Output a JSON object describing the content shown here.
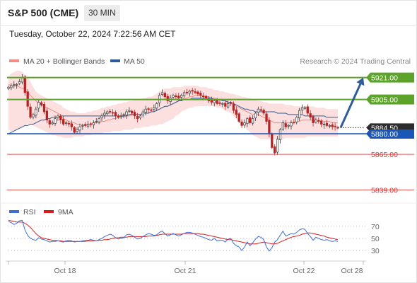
{
  "header": {
    "title": "S&P 500 (CME)",
    "timeframe": "30 MIN",
    "timestamp": "Tuesday, October 22, 2024 7:22:56 AM CET"
  },
  "legend": {
    "ma20": "MA 20 + Bollinger Bands",
    "ma50": "MA 50",
    "source": "Research © 2024 Trading Central",
    "colors": {
      "ma20": "#f08a84",
      "ma50": "#2f5c97"
    }
  },
  "rsi_legend": {
    "rsi": "RSI",
    "ma9": "9MA",
    "colors": {
      "rsi": "#3d6fd6",
      "ma9": "#dd1a1a"
    }
  },
  "x_axis_labels": [
    "Oct 18",
    "Oct 21",
    "Oct 22",
    "Oct 28"
  ],
  "chart_data": [
    {
      "type": "candlestick",
      "ylim": [
        5830,
        5928
      ],
      "current_price": 5884.5,
      "levels": [
        {
          "value": 5921.0,
          "label": "5921.00",
          "style": "resistance",
          "color": "#5da32b"
        },
        {
          "value": 5905.0,
          "label": "5905.00",
          "style": "resistance",
          "color": "#5da32b"
        },
        {
          "value": 5880.0,
          "label": "5880.00",
          "style": "pivot",
          "color": "#1a56b8"
        },
        {
          "value": 5865.0,
          "label": "5865.00",
          "style": "support",
          "color": "#e05858"
        },
        {
          "value": 5839.0,
          "label": "5839.00",
          "style": "support",
          "color": "#e05858"
        }
      ],
      "current_label": "5884.50",
      "target_arrow": {
        "from": 5884.5,
        "to": 5921
      },
      "close": [
        5914,
        5915,
        5916,
        5916,
        5918,
        5921,
        5910,
        5900,
        5892,
        5894,
        5898,
        5903,
        5901,
        5896,
        5890,
        5887,
        5888,
        5891,
        5893,
        5890,
        5887,
        5888,
        5887,
        5885,
        5881,
        5883,
        5885,
        5886,
        5886,
        5887,
        5887,
        5888,
        5889,
        5891,
        5893,
        5895,
        5896,
        5896,
        5895,
        5893,
        5892,
        5893,
        5894,
        5896,
        5897,
        5895,
        5893,
        5891,
        5893,
        5896,
        5898,
        5898,
        5897,
        5899,
        5902,
        5908,
        5910,
        5907,
        5904,
        5906,
        5908,
        5907,
        5906,
        5908,
        5910,
        5910,
        5911,
        5911,
        5910,
        5909,
        5908,
        5907,
        5906,
        5904,
        5903,
        5904,
        5902,
        5902,
        5902,
        5900,
        5902,
        5902,
        5897,
        5894,
        5889,
        5886,
        5888,
        5891,
        5888,
        5891,
        5895,
        5898,
        5897,
        5895,
        5889,
        5880,
        5870,
        5866,
        5876,
        5883,
        5888,
        5885,
        5886,
        5888,
        5888,
        5892,
        5897,
        5899,
        5899,
        5895,
        5892,
        5888,
        5890,
        5889,
        5887,
        5887,
        5886,
        5886,
        5885,
        5885,
        5884.5
      ],
      "ma20": [
        5916,
        5915,
        5915,
        5915,
        5914,
        5913,
        5912,
        5910,
        5908,
        5906,
        5904,
        5902,
        5901,
        5900,
        5899,
        5898,
        5897,
        5896,
        5895,
        5893,
        5891,
        5890,
        5889,
        5888,
        5888,
        5887,
        5887,
        5887,
        5887,
        5887,
        5887,
        5888,
        5888,
        5888,
        5889,
        5889,
        5890,
        5890,
        5891,
        5891,
        5892,
        5892,
        5893,
        5893,
        5893,
        5894,
        5894,
        5894,
        5894,
        5895,
        5895,
        5895,
        5896,
        5896,
        5897,
        5898,
        5899,
        5900,
        5900,
        5901,
        5902,
        5903,
        5904,
        5905,
        5906,
        5906,
        5907,
        5907,
        5908,
        5908,
        5908,
        5907,
        5907,
        5907,
        5906,
        5906,
        5905,
        5905,
        5904,
        5904,
        5903,
        5903,
        5902,
        5900,
        5899,
        5898,
        5897,
        5896,
        5895,
        5894,
        5894,
        5894,
        5893,
        5892,
        5891,
        5890,
        5889,
        5888,
        5888,
        5888,
        5888,
        5888,
        5888,
        5888,
        5888,
        5889,
        5889,
        5890,
        5890,
        5890,
        5890,
        5890,
        5890,
        5890,
        5890,
        5889,
        5889,
        5889,
        5888,
        5888,
        5888
      ],
      "ma50": [
        5880,
        5881,
        5882,
        5883,
        5884,
        5885,
        5886,
        5886,
        5887,
        5887,
        5888,
        5889,
        5890,
        5890,
        5891,
        5891,
        5892,
        5892,
        5892,
        5893,
        5893,
        5893,
        5893,
        5893,
        5893,
        5893,
        5893,
        5893,
        5893,
        5893,
        5893,
        5893,
        5893,
        5893,
        5893,
        5893,
        5893,
        5893,
        5893,
        5893,
        5893,
        5893,
        5893,
        5893,
        5894,
        5894,
        5894,
        5894,
        5894,
        5895,
        5895,
        5895,
        5896,
        5896,
        5897,
        5898,
        5899,
        5900,
        5900,
        5901,
        5902,
        5903,
        5904,
        5904,
        5905,
        5905,
        5905,
        5906,
        5906,
        5906,
        5906,
        5906,
        5906,
        5906,
        5906,
        5905,
        5905,
        5905,
        5904,
        5904,
        5903,
        5903,
        5902,
        5901,
        5900,
        5899,
        5898,
        5898,
        5897,
        5897,
        5896,
        5896,
        5896,
        5896,
        5896,
        5896,
        5896,
        5896,
        5895,
        5895,
        5895,
        5895,
        5894,
        5894,
        5894,
        5894,
        5894,
        5894,
        5893,
        5893,
        5893,
        5893,
        5893,
        5893,
        5893,
        5893,
        5892,
        5892,
        5892,
        5892,
        5892
      ],
      "bollinger_upper": [
        5922,
        5924,
        5925,
        5926,
        5926,
        5925,
        5923,
        5921,
        5918,
        5914,
        5911,
        5909,
        5908,
        5907,
        5906,
        5905,
        5904,
        5903,
        5902,
        5901,
        5899,
        5898,
        5897,
        5896,
        5896,
        5895,
        5895,
        5895,
        5895,
        5896,
        5896,
        5897,
        5897,
        5898,
        5899,
        5899,
        5900,
        5900,
        5901,
        5901,
        5902,
        5902,
        5903,
        5903,
        5904,
        5904,
        5905,
        5905,
        5905,
        5906,
        5906,
        5907,
        5907,
        5908,
        5909,
        5911,
        5912,
        5913,
        5913,
        5913,
        5914,
        5914,
        5914,
        5914,
        5915,
        5915,
        5915,
        5915,
        5915,
        5915,
        5914,
        5914,
        5914,
        5913,
        5913,
        5912,
        5912,
        5911,
        5911,
        5910,
        5910,
        5909,
        5909,
        5908,
        5908,
        5907,
        5907,
        5906,
        5906,
        5905,
        5905,
        5904,
        5904,
        5903,
        5903,
        5902,
        5902,
        5902,
        5902,
        5902,
        5902,
        5901,
        5901,
        5901,
        5900,
        5900,
        5900,
        5900,
        5900,
        5900,
        5900,
        5900,
        5899,
        5899,
        5899,
        5899,
        5898,
        5898,
        5898,
        5898,
        5898
      ],
      "bollinger_lower": [
        5883,
        5882,
        5882,
        5883,
        5884,
        5885,
        5886,
        5887,
        5887,
        5886,
        5885,
        5884,
        5883,
        5882,
        5881,
        5880,
        5879,
        5879,
        5878,
        5878,
        5877,
        5877,
        5877,
        5877,
        5878,
        5878,
        5878,
        5878,
        5879,
        5879,
        5879,
        5880,
        5880,
        5880,
        5880,
        5881,
        5881,
        5881,
        5882,
        5882,
        5882,
        5882,
        5883,
        5883,
        5883,
        5883,
        5884,
        5884,
        5884,
        5885,
        5885,
        5885,
        5886,
        5886,
        5886,
        5887,
        5887,
        5888,
        5889,
        5890,
        5891,
        5893,
        5894,
        5896,
        5897,
        5898,
        5899,
        5899,
        5900,
        5900,
        5900,
        5900,
        5900,
        5900,
        5900,
        5900,
        5899,
        5899,
        5898,
        5897,
        5896,
        5895,
        5893,
        5891,
        5889,
        5887,
        5885,
        5883,
        5881,
        5879,
        5878,
        5877,
        5876,
        5876,
        5876,
        5876,
        5876,
        5876,
        5876,
        5876,
        5876,
        5877,
        5877,
        5877,
        5877,
        5877,
        5877,
        5877,
        5877,
        5878,
        5878,
        5878,
        5878,
        5878,
        5878,
        5878,
        5878,
        5878,
        5878,
        5878,
        5878
      ]
    },
    {
      "type": "line",
      "title": "RSI",
      "ylim": [
        15,
        85
      ],
      "y_ticks": [
        70,
        50,
        30
      ],
      "series": [
        {
          "name": "RSI",
          "values": [
            78,
            76,
            73,
            75,
            79,
            80,
            64,
            55,
            50,
            48,
            47,
            51,
            49,
            48,
            46,
            44,
            45,
            45,
            46,
            45,
            44,
            46,
            47,
            46,
            44,
            45,
            45,
            46,
            47,
            47,
            48,
            47,
            46,
            48,
            50,
            53,
            55,
            57,
            55,
            51,
            49,
            50,
            51,
            56,
            57,
            55,
            52,
            49,
            50,
            53,
            56,
            58,
            57,
            55,
            56,
            60,
            62,
            58,
            54,
            56,
            58,
            56,
            54,
            56,
            58,
            60,
            60,
            59,
            57,
            55,
            53,
            52,
            50,
            48,
            47,
            50,
            46,
            47,
            47,
            44,
            49,
            50,
            42,
            38,
            36,
            30,
            36,
            44,
            38,
            43,
            49,
            53,
            52,
            48,
            36,
            29,
            35,
            44,
            48,
            55,
            62,
            54,
            56,
            58,
            57,
            60,
            64,
            66,
            65,
            58,
            53,
            47,
            52,
            50,
            48,
            47,
            48,
            46,
            45,
            46,
            45
          ]
        },
        {
          "name": "9MA",
          "values": [
            80,
            79,
            78,
            77,
            77,
            77,
            75,
            72,
            68,
            63,
            58,
            54,
            51,
            50,
            49,
            48,
            47,
            47,
            46,
            46,
            45,
            45,
            45,
            45,
            45,
            45,
            45,
            45,
            45,
            46,
            46,
            46,
            46,
            47,
            47,
            48,
            48,
            49,
            50,
            51,
            51,
            52,
            52,
            52,
            53,
            53,
            53,
            53,
            53,
            53,
            53,
            54,
            54,
            54,
            55,
            56,
            57,
            57,
            57,
            57,
            57,
            57,
            57,
            57,
            58,
            58,
            58,
            58,
            58,
            58,
            57,
            57,
            56,
            55,
            54,
            53,
            52,
            51,
            50,
            49,
            48,
            48,
            47,
            46,
            45,
            44,
            43,
            42,
            41,
            41,
            41,
            42,
            43,
            44,
            43,
            42,
            41,
            41,
            42,
            44,
            46,
            48,
            50,
            52,
            53,
            54,
            55,
            57,
            58,
            59,
            59,
            58,
            57,
            56,
            55,
            54,
            52,
            51,
            50,
            49,
            48
          ]
        }
      ]
    }
  ]
}
